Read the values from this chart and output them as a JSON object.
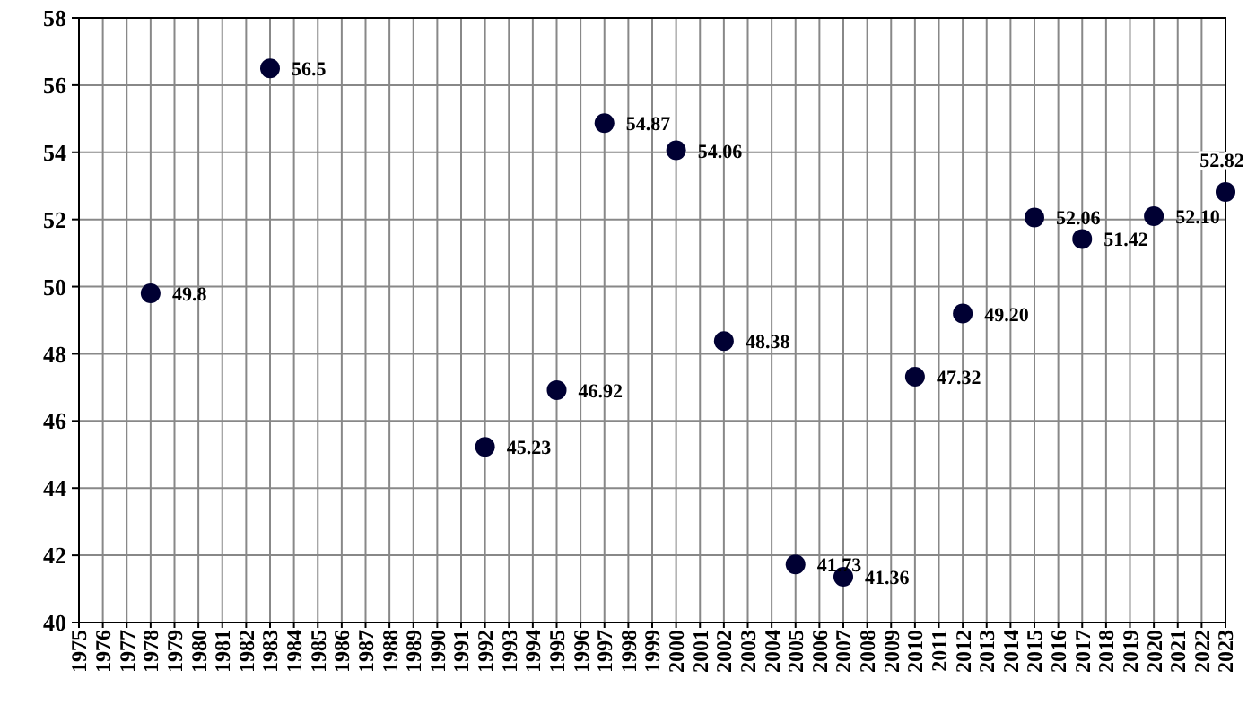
{
  "chart_data": {
    "type": "scatter",
    "x": [
      1978,
      1983,
      1992,
      1995,
      1997,
      2000,
      2002,
      2005,
      2007,
      2010,
      2012,
      2015,
      2017,
      2020,
      2023
    ],
    "values": [
      49.8,
      56.5,
      45.23,
      46.92,
      54.87,
      54.06,
      48.38,
      41.73,
      41.36,
      47.32,
      49.2,
      52.06,
      51.42,
      52.1,
      52.82
    ],
    "value_labels": [
      "49.8",
      "56.5",
      "45.23",
      "46.92",
      "54.87",
      "54.06",
      "48.38",
      "41.73",
      "41.36",
      "47.32",
      "49.20",
      "52.06",
      "51.42",
      "52.10",
      "52.82"
    ],
    "color": "#000033",
    "marker": "circle",
    "grid": true,
    "xlim": [
      1975,
      2023
    ],
    "xticks": [
      1975,
      1976,
      1977,
      1978,
      1979,
      1980,
      1981,
      1982,
      1983,
      1984,
      1985,
      1986,
      1987,
      1988,
      1989,
      1990,
      1991,
      1992,
      1993,
      1994,
      1995,
      1996,
      1997,
      1998,
      1999,
      2000,
      2001,
      2002,
      2003,
      2004,
      2005,
      2006,
      2007,
      2008,
      2009,
      2010,
      2011,
      2012,
      2013,
      2014,
      2015,
      2016,
      2017,
      2018,
      2019,
      2020,
      2021,
      2022,
      2023
    ],
    "ylim": [
      40,
      58
    ],
    "yticks": [
      40,
      42,
      44,
      46,
      48,
      50,
      52,
      54,
      56,
      58
    ]
  }
}
